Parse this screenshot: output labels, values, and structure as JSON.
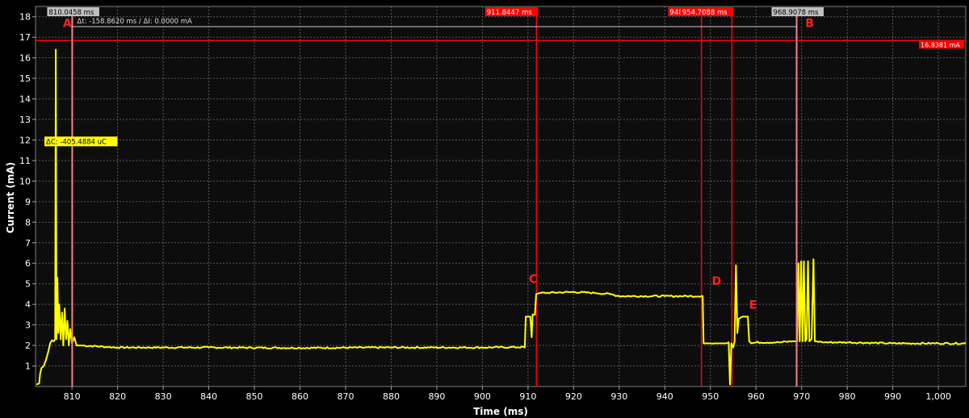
{
  "chart_data": {
    "type": "line",
    "xlabel": "Time (ms)",
    "ylabel": "Current (mA)",
    "xlim": [
      802,
      1006
    ],
    "ylim": [
      0,
      18.5
    ],
    "xticks": [
      810,
      820,
      830,
      840,
      850,
      860,
      870,
      880,
      890,
      900,
      910,
      920,
      930,
      940,
      950,
      960,
      970,
      980,
      990,
      1000
    ],
    "xtick_labels": [
      "810",
      "820",
      "830",
      "840",
      "850",
      "860",
      "870",
      "880",
      "890",
      "900",
      "910",
      "920",
      "930",
      "940",
      "950",
      "960",
      "970",
      "980",
      "990",
      "1,000"
    ],
    "yticks": [
      1,
      2,
      3,
      4,
      5,
      6,
      7,
      8,
      9,
      10,
      11,
      12,
      13,
      14,
      15,
      16,
      17,
      18
    ],
    "ytick_labels": [
      "1",
      "2",
      "3",
      "4",
      "5",
      "6",
      "7",
      "8",
      "9",
      "10",
      "11",
      "12",
      "13",
      "14",
      "15",
      "16",
      "17",
      "18"
    ],
    "grid": true,
    "colors": {
      "background": "#000000",
      "plot_bg": "#101010",
      "trace": "#ffff00",
      "grid": "#5a5a5a",
      "cursor_ab": "#ff8080",
      "cursor_red": "#ff0000",
      "annotation": "#ff2020",
      "axis_text": "#ffffff"
    },
    "series": [
      {
        "values": [
          [
            802.2,
            0.1
          ],
          [
            802.8,
            0.15
          ],
          [
            803.0,
            0.6
          ],
          [
            803.3,
            0.9
          ],
          [
            803.8,
            1.0
          ],
          [
            804.3,
            1.3
          ],
          [
            804.8,
            1.7
          ],
          [
            805.2,
            2.1
          ],
          [
            805.6,
            2.25
          ],
          [
            806.0,
            2.2
          ],
          [
            806.3,
            2.3
          ],
          [
            806.45,
            16.4
          ],
          [
            806.6,
            2.3
          ],
          [
            806.8,
            5.3
          ],
          [
            807.0,
            2.6
          ],
          [
            807.2,
            4.0
          ],
          [
            807.5,
            2.3
          ],
          [
            807.8,
            3.6
          ],
          [
            808.1,
            2.0
          ],
          [
            808.4,
            3.8
          ],
          [
            808.7,
            2.3
          ],
          [
            809.0,
            3.2
          ],
          [
            809.3,
            2.0
          ],
          [
            809.6,
            2.8
          ],
          [
            810.0,
            2.1
          ],
          [
            810.5,
            2.4
          ],
          [
            811.0,
            2.0
          ],
          [
            812,
            2.0
          ],
          [
            820,
            1.9
          ],
          [
            840,
            1.9
          ],
          [
            860,
            1.88
          ],
          [
            880,
            1.9
          ],
          [
            900,
            1.9
          ],
          [
            909.0,
            1.92
          ],
          [
            909.3,
            1.9
          ],
          [
            909.5,
            3.4
          ],
          [
            910.0,
            3.4
          ],
          [
            910.5,
            3.4
          ],
          [
            910.8,
            2.4
          ],
          [
            911.0,
            3.5
          ],
          [
            911.5,
            3.5
          ],
          [
            911.8,
            4.5
          ],
          [
            912.5,
            4.55
          ],
          [
            920,
            4.6
          ],
          [
            925,
            4.55
          ],
          [
            928,
            4.5
          ],
          [
            930,
            4.4
          ],
          [
            940,
            4.4
          ],
          [
            948.0,
            4.4
          ],
          [
            948.3,
            4.4
          ],
          [
            948.5,
            2.1
          ],
          [
            950,
            2.1
          ],
          [
            952,
            2.1
          ],
          [
            953.5,
            2.1
          ],
          [
            954.0,
            2.15
          ],
          [
            954.3,
            0.1
          ],
          [
            954.6,
            2.1
          ],
          [
            955.0,
            1.9
          ],
          [
            955.3,
            2.2
          ],
          [
            955.6,
            5.9
          ],
          [
            955.9,
            2.6
          ],
          [
            956.2,
            3.3
          ],
          [
            957.0,
            3.4
          ],
          [
            958.2,
            3.4
          ],
          [
            958.5,
            2.2
          ],
          [
            959.0,
            2.1
          ],
          [
            960,
            2.15
          ],
          [
            965,
            2.15
          ],
          [
            968,
            2.2
          ],
          [
            969.0,
            2.2
          ],
          [
            969.3,
            6.0
          ],
          [
            969.6,
            2.2
          ],
          [
            969.9,
            6.1
          ],
          [
            970.2,
            2.2
          ],
          [
            970.5,
            6.1
          ],
          [
            970.8,
            2.2
          ],
          [
            971.1,
            2.3
          ],
          [
            971.4,
            6.1
          ],
          [
            971.7,
            2.2
          ],
          [
            972.2,
            2.3
          ],
          [
            972.6,
            6.2
          ],
          [
            972.9,
            2.2
          ],
          [
            973.3,
            2.2
          ],
          [
            975,
            2.15
          ],
          [
            980,
            2.15
          ],
          [
            990,
            2.1
          ],
          [
            1000,
            2.1
          ],
          [
            1006,
            2.1
          ]
        ]
      }
    ],
    "cursors": [
      {
        "id": "A",
        "x": 810.0458,
        "label": "810.0458 ms",
        "color": "#ff8080",
        "label_bg": "#c0c0c0",
        "label_fg": "#000000"
      },
      {
        "id": "B",
        "x": 968.9078,
        "label": "968.9078 ms",
        "color": "#ff8080",
        "label_bg": "#c0c0c0",
        "label_fg": "#000000"
      }
    ],
    "markers": [
      {
        "x": 911.8447,
        "label": "911.8447 ms",
        "color": "#ff0000"
      },
      {
        "x": 948.026,
        "label": "948.026",
        "color": "#ff0000"
      },
      {
        "x": 954.7088,
        "label": "954.7088 ms",
        "color": "#ff0000"
      }
    ],
    "hline": {
      "y": 16.8381,
      "label": "16.8381 mA",
      "color": "#ff0000"
    },
    "delta_text": "Δt: -158.8620 ms / ΔI: 0.0000 mA",
    "charge_label": "ΔC: -405.4884 uC",
    "charge_y": 11.93,
    "annotations": [
      {
        "text": "A",
        "x": 808.0,
        "y": 17.5
      },
      {
        "text": "B",
        "x": 970.8,
        "y": 17.5
      },
      {
        "text": "C",
        "x": 910.2,
        "y": 5.05
      },
      {
        "text": "D",
        "x": 950.3,
        "y": 4.95
      },
      {
        "text": "E",
        "x": 958.5,
        "y": 3.8
      }
    ]
  }
}
